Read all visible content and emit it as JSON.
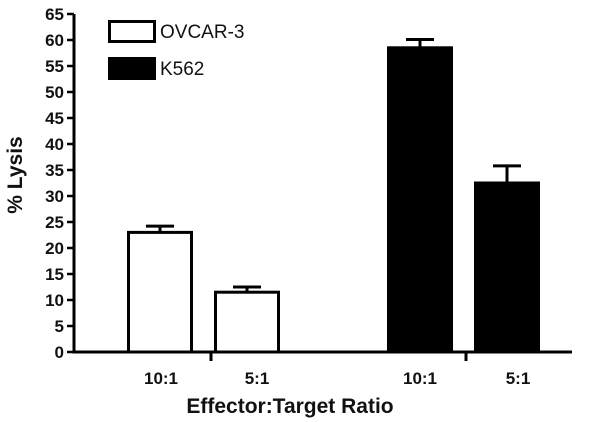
{
  "chart_data": {
    "type": "bar",
    "title": "",
    "xlabel": "Effector:Target Ratio",
    "ylabel": "% Lysis",
    "ylim": [
      0,
      65
    ],
    "yticks": [
      0,
      5,
      10,
      15,
      20,
      25,
      30,
      35,
      40,
      45,
      50,
      55,
      60,
      65
    ],
    "legend_position": "top-left",
    "grid": false,
    "bars": [
      {
        "series": "OVCAR-3",
        "category": "10:1",
        "value": 23,
        "error": 1.2
      },
      {
        "series": "OVCAR-3",
        "category": "5:1",
        "value": 11.5,
        "error": 1.0
      },
      {
        "series": "K562",
        "category": "10:1",
        "value": 58.5,
        "error": 1.6
      },
      {
        "series": "K562",
        "category": "5:1",
        "value": 32.5,
        "error": 3.3
      }
    ],
    "series": [
      {
        "name": "OVCAR-3",
        "fill": "#ffffff",
        "stroke": "#000000"
      },
      {
        "name": "K562",
        "fill": "#000000",
        "stroke": "#000000"
      }
    ]
  }
}
